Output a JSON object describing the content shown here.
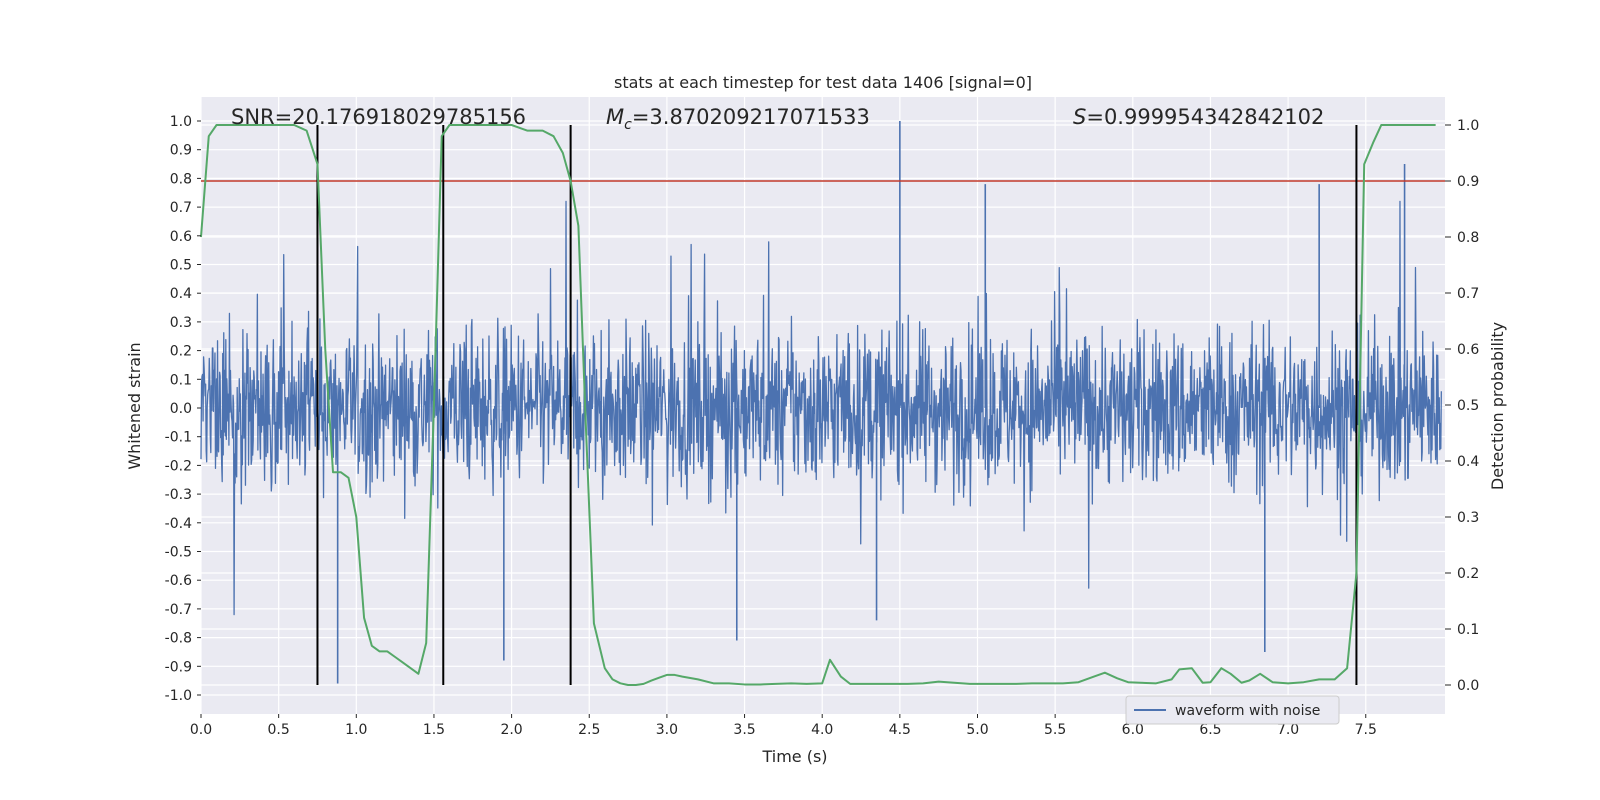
{
  "chart_data": {
    "type": "line",
    "title": "stats at each timestep for test data 1406 [signal=0]",
    "xlabel": "Time (s)",
    "ylabel": "Whitened strain",
    "y2label": "Detection probability",
    "xlim": [
      0.0,
      8.0
    ],
    "ylim": [
      -1.1,
      1.1
    ],
    "y2lim": [
      -0.05,
      1.05
    ],
    "x_ticks": [
      0.0,
      0.5,
      1.0,
      1.5,
      2.0,
      2.5,
      3.0,
      3.5,
      4.0,
      4.5,
      5.0,
      5.5,
      6.0,
      6.5,
      7.0,
      7.5
    ],
    "x_tick_labels": [
      "0.0",
      "0.5",
      "1.0",
      "1.5",
      "2.0",
      "2.5",
      "3.0",
      "3.5",
      "4.0",
      "4.5",
      "5.0",
      "5.5",
      "6.0",
      "6.5",
      "7.0",
      "7.5"
    ],
    "y_ticks": [
      -1.0,
      -0.9,
      -0.8,
      -0.7,
      -0.6,
      -0.5,
      -0.4,
      -0.3,
      -0.2,
      -0.1,
      0.0,
      0.1,
      0.2,
      0.3,
      0.4,
      0.5,
      0.6,
      0.7,
      0.8,
      0.9,
      1.0
    ],
    "y_tick_labels": [
      "-1.0",
      "-0.9",
      "-0.8",
      "-0.7",
      "-0.6",
      "-0.5",
      "-0.4",
      "-0.3",
      "-0.2",
      "-0.1",
      "0.0",
      "0.1",
      "0.2",
      "0.3",
      "0.4",
      "0.5",
      "0.6",
      "0.7",
      "0.8",
      "0.9",
      "1.0"
    ],
    "y2_ticks": [
      0.0,
      0.1,
      0.2,
      0.3,
      0.4,
      0.5,
      0.6,
      0.7,
      0.8,
      0.9,
      1.0
    ],
    "y2_tick_labels": [
      "0.0",
      "0.1",
      "0.2",
      "0.3",
      "0.4",
      "0.5",
      "0.6",
      "0.7",
      "0.8",
      "0.9",
      "1.0"
    ],
    "grid": true,
    "legend_position": "lower-right",
    "annotations": {
      "snr": "SNR=20.176918029785156",
      "mc_symbol": "M",
      "mc_sub": "c",
      "mc_value": "=3.870209217071533",
      "s_symbol": "S",
      "s_value": "=0.999954342842102"
    },
    "threshold": {
      "y2": 0.9,
      "color": "#c0392b"
    },
    "vertical_lines_x": [
      0.75,
      1.56,
      2.38,
      7.44
    ],
    "series": [
      {
        "name": "waveform with noise",
        "color": "#4c72b0",
        "kind": "noise-waveform",
        "typical_band": [
          -0.4,
          0.45
        ],
        "peak_spikes": [
          {
            "x": 0.88,
            "y": -0.96
          },
          {
            "x": 1.95,
            "y": -0.88
          },
          {
            "x": 4.5,
            "y": 1.0
          },
          {
            "x": 5.05,
            "y": 0.78
          },
          {
            "x": 7.2,
            "y": 0.78
          },
          {
            "x": 7.75,
            "y": 0.85
          },
          {
            "x": 6.85,
            "y": -0.85
          },
          {
            "x": 3.45,
            "y": -0.81
          },
          {
            "x": 4.35,
            "y": -0.74
          }
        ]
      },
      {
        "name": "",
        "color": "#55a868",
        "axis": "y2",
        "x": [
          0.0,
          0.05,
          0.1,
          0.2,
          0.3,
          0.4,
          0.5,
          0.6,
          0.68,
          0.75,
          0.8,
          0.85,
          0.9,
          0.95,
          1.0,
          1.05,
          1.1,
          1.15,
          1.2,
          1.25,
          1.3,
          1.35,
          1.4,
          1.45,
          1.5,
          1.55,
          1.6,
          1.65,
          1.7,
          1.8,
          1.9,
          2.0,
          2.1,
          2.2,
          2.27,
          2.33,
          2.38,
          2.43,
          2.48,
          2.53,
          2.6,
          2.65,
          2.7,
          2.75,
          2.8,
          2.85,
          2.9,
          2.95,
          3.0,
          3.05,
          3.1,
          3.2,
          3.3,
          3.4,
          3.5,
          3.6,
          3.7,
          3.8,
          3.9,
          4.0,
          4.05,
          4.12,
          4.18,
          4.25,
          4.35,
          4.45,
          4.55,
          4.65,
          4.75,
          4.85,
          4.95,
          5.05,
          5.15,
          5.25,
          5.35,
          5.45,
          5.55,
          5.65,
          5.75,
          5.82,
          5.9,
          5.97,
          6.05,
          6.15,
          6.25,
          6.3,
          6.38,
          6.45,
          6.5,
          6.57,
          6.63,
          6.7,
          6.75,
          6.82,
          6.9,
          7.0,
          7.1,
          7.2,
          7.3,
          7.38,
          7.44,
          7.49,
          7.55,
          7.6,
          7.7,
          7.8,
          7.95
        ],
        "values": [
          0.8,
          0.98,
          1.0,
          1.0,
          1.0,
          1.0,
          1.0,
          1.0,
          0.99,
          0.93,
          0.6,
          0.38,
          0.38,
          0.37,
          0.3,
          0.12,
          0.07,
          0.06,
          0.06,
          0.05,
          0.04,
          0.03,
          0.02,
          0.075,
          0.5,
          0.98,
          1.0,
          1.0,
          1.0,
          1.0,
          1.0,
          1.0,
          0.99,
          0.99,
          0.98,
          0.95,
          0.9,
          0.82,
          0.45,
          0.11,
          0.03,
          0.01,
          0.003,
          0.0,
          0.0,
          0.002,
          0.008,
          0.013,
          0.018,
          0.018,
          0.015,
          0.01,
          0.003,
          0.003,
          0.001,
          0.001,
          0.002,
          0.003,
          0.002,
          0.003,
          0.045,
          0.015,
          0.002,
          0.002,
          0.002,
          0.002,
          0.002,
          0.003,
          0.006,
          0.004,
          0.002,
          0.002,
          0.002,
          0.002,
          0.003,
          0.003,
          0.003,
          0.005,
          0.015,
          0.022,
          0.012,
          0.005,
          0.004,
          0.003,
          0.01,
          0.028,
          0.03,
          0.004,
          0.005,
          0.03,
          0.02,
          0.004,
          0.008,
          0.02,
          0.005,
          0.003,
          0.005,
          0.01,
          0.01,
          0.03,
          0.2,
          0.93,
          0.97,
          1.0,
          1.0,
          1.0,
          1.0
        ]
      }
    ]
  },
  "legend": {
    "label": "waveform with noise"
  },
  "colors": {
    "plot_background": "#eaeaf2",
    "grid": "#ffffff",
    "waveform": "#4c72b0",
    "probability": "#55a868",
    "threshold": "#c0392b",
    "vertical_lines": "#000000"
  }
}
